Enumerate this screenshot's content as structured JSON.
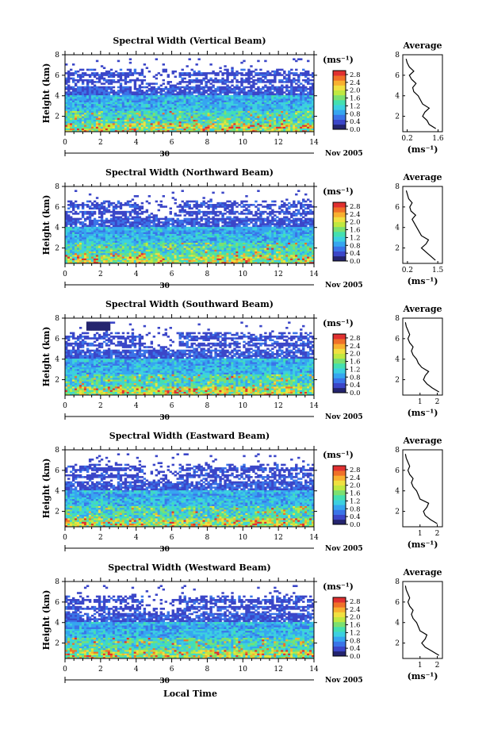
{
  "figure": {
    "date_label": "Nov 2005",
    "day_label": "30",
    "xlabel_bottom": "Local Time",
    "colorbar_unit": "(ms⁻¹)",
    "avg_title": "Average",
    "avg_unit": "(ms⁻¹)"
  },
  "chart_data": [
    {
      "type": "heatmap",
      "title": "Spectral Width (Vertical Beam)",
      "ylabel": "Height (km)",
      "x_ticks": [
        "0",
        "2",
        "4",
        "6",
        "8",
        "10",
        "12",
        "14"
      ],
      "xlim": [
        0,
        14
      ],
      "y_ticks": [
        "2",
        "4",
        "6",
        "8"
      ],
      "ylim": [
        0.5,
        8
      ],
      "colorbar_ticks": [
        "0.0",
        "0.4",
        "0.8",
        "1.2",
        "1.6",
        "2.0",
        "2.4",
        "2.8"
      ],
      "colorbar_range": [
        0,
        3.0
      ],
      "average_profile": {
        "type": "line",
        "x_ticks": [
          "0.2",
          "1.6"
        ],
        "xlim": [
          0,
          1.8
        ],
        "y_ticks": [
          "2",
          "4",
          "6",
          "8"
        ],
        "ylim": [
          0.5,
          8
        ],
        "heights": [
          0.8,
          1.2,
          1.6,
          2.0,
          2.4,
          2.8,
          3.2,
          3.6,
          4.0,
          4.4,
          4.8,
          5.2,
          5.6,
          6.0,
          6.4,
          6.8,
          7.2,
          7.6
        ],
        "values": [
          1.5,
          1.2,
          1.1,
          0.9,
          1.0,
          1.2,
          0.9,
          0.8,
          0.7,
          0.5,
          0.45,
          0.6,
          0.4,
          0.3,
          0.5,
          0.3,
          0.2,
          0.15
        ]
      }
    },
    {
      "type": "heatmap",
      "title": "Spectral Width (Northward Beam)",
      "ylabel": "Height (km)",
      "x_ticks": [
        "0",
        "2",
        "4",
        "6",
        "8",
        "10",
        "12",
        "14"
      ],
      "xlim": [
        0,
        14
      ],
      "y_ticks": [
        "2",
        "4",
        "6",
        "8"
      ],
      "ylim": [
        0.5,
        8
      ],
      "colorbar_ticks": [
        "0.0",
        "0.4",
        "0.8",
        "1.2",
        "1.6",
        "2.0",
        "2.4",
        "2.8"
      ],
      "colorbar_range": [
        0,
        3.0
      ],
      "average_profile": {
        "type": "line",
        "x_ticks": [
          "0.2",
          "1.5"
        ],
        "xlim": [
          0,
          1.7
        ],
        "y_ticks": [
          "2",
          "4",
          "6",
          "8"
        ],
        "ylim": [
          0.5,
          8
        ],
        "heights": [
          0.8,
          1.2,
          1.6,
          2.0,
          2.4,
          2.8,
          3.2,
          3.6,
          4.0,
          4.4,
          4.8,
          5.2,
          5.6,
          6.0,
          6.4,
          6.8,
          7.2,
          7.6
        ],
        "values": [
          1.4,
          1.2,
          1.0,
          0.8,
          1.0,
          1.1,
          0.8,
          0.7,
          0.6,
          0.5,
          0.4,
          0.55,
          0.35,
          0.3,
          0.4,
          0.25,
          0.2,
          0.15
        ]
      }
    },
    {
      "type": "heatmap",
      "title": "Spectral Width (Southward Beam)",
      "ylabel": "Height (km)",
      "x_ticks": [
        "0",
        "2",
        "4",
        "6",
        "8",
        "10",
        "12",
        "14"
      ],
      "xlim": [
        0,
        14
      ],
      "y_ticks": [
        "2",
        "4",
        "6",
        "8"
      ],
      "ylim": [
        0.5,
        8
      ],
      "colorbar_ticks": [
        "0.0",
        "0.4",
        "0.8",
        "1.2",
        "1.6",
        "2.0",
        "2.4",
        "2.8"
      ],
      "colorbar_range": [
        0,
        3.0
      ],
      "average_profile": {
        "type": "line",
        "x_ticks": [
          "1",
          "2"
        ],
        "xlim": [
          0,
          2.3
        ],
        "y_ticks": [
          "2",
          "4",
          "6",
          "8"
        ],
        "ylim": [
          0.5,
          8
        ],
        "heights": [
          0.8,
          1.2,
          1.6,
          2.0,
          2.4,
          2.8,
          3.2,
          3.6,
          4.0,
          4.4,
          4.8,
          5.2,
          5.6,
          6.0,
          6.4,
          6.8,
          7.2,
          7.6
        ],
        "values": [
          2.1,
          1.7,
          1.4,
          1.2,
          1.3,
          1.5,
          1.1,
          0.9,
          0.8,
          0.6,
          0.5,
          0.6,
          0.4,
          0.3,
          0.4,
          0.3,
          0.2,
          0.15
        ]
      }
    },
    {
      "type": "heatmap",
      "title": "Spectral Width (Eastward Beam)",
      "ylabel": "Height (km)",
      "x_ticks": [
        "0",
        "2",
        "4",
        "6",
        "8",
        "10",
        "12",
        "14"
      ],
      "xlim": [
        0,
        14
      ],
      "y_ticks": [
        "2",
        "4",
        "6",
        "8"
      ],
      "ylim": [
        0.5,
        8
      ],
      "colorbar_ticks": [
        "0.0",
        "0.4",
        "0.8",
        "1.2",
        "1.6",
        "2.0",
        "2.4",
        "2.8"
      ],
      "colorbar_range": [
        0,
        3.0
      ],
      "average_profile": {
        "type": "line",
        "x_ticks": [
          "1",
          "2"
        ],
        "xlim": [
          0,
          2.3
        ],
        "y_ticks": [
          "2",
          "4",
          "6",
          "8"
        ],
        "ylim": [
          0.5,
          8
        ],
        "heights": [
          0.8,
          1.2,
          1.6,
          2.0,
          2.4,
          2.8,
          3.2,
          3.6,
          4.0,
          4.4,
          4.8,
          5.2,
          5.6,
          6.0,
          6.4,
          6.8,
          7.2,
          7.6
        ],
        "values": [
          2.0,
          1.6,
          1.3,
          1.2,
          1.4,
          1.5,
          1.0,
          0.9,
          0.8,
          0.6,
          0.5,
          0.6,
          0.4,
          0.3,
          0.4,
          0.3,
          0.2,
          0.15
        ]
      }
    },
    {
      "type": "heatmap",
      "title": "Spectral Width (Westward Beam)",
      "ylabel": "Height (km)",
      "x_ticks": [
        "0",
        "2",
        "4",
        "6",
        "8",
        "10",
        "12",
        "14"
      ],
      "xlim": [
        0,
        14
      ],
      "y_ticks": [
        "2",
        "4",
        "6",
        "8"
      ],
      "ylim": [
        0.5,
        8
      ],
      "colorbar_ticks": [
        "0.0",
        "0.4",
        "0.8",
        "1.2",
        "1.6",
        "2.0",
        "2.4",
        "2.8"
      ],
      "colorbar_range": [
        0,
        3.0
      ],
      "average_profile": {
        "type": "line",
        "x_ticks": [
          "1",
          "2"
        ],
        "xlim": [
          0,
          2.3
        ],
        "y_ticks": [
          "2",
          "4",
          "6",
          "8"
        ],
        "ylim": [
          0.5,
          8
        ],
        "heights": [
          0.8,
          1.2,
          1.6,
          2.0,
          2.4,
          2.8,
          3.2,
          3.6,
          4.0,
          4.4,
          4.8,
          5.2,
          5.6,
          6.0,
          6.4,
          6.8,
          7.2,
          7.6
        ],
        "values": [
          2.1,
          1.7,
          1.3,
          1.1,
          1.3,
          1.4,
          1.0,
          0.9,
          0.8,
          0.6,
          0.5,
          0.6,
          0.4,
          0.3,
          0.4,
          0.3,
          0.2,
          0.15
        ]
      }
    }
  ]
}
